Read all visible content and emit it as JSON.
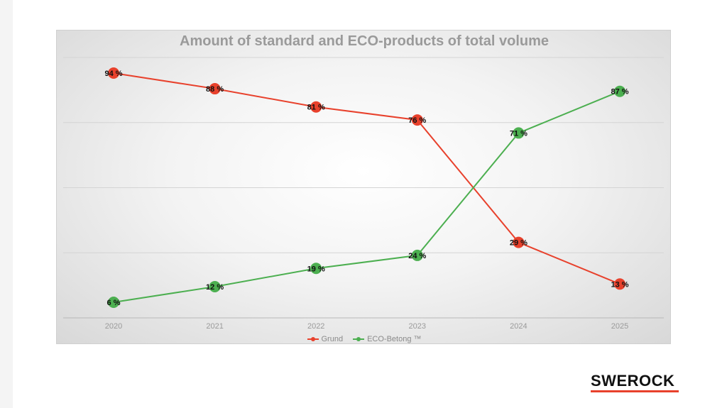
{
  "chart_data": {
    "type": "line",
    "title": "Amount of standard and ECO-products of total volume",
    "categories": [
      "2020",
      "2021",
      "2022",
      "2023",
      "2024",
      "2025"
    ],
    "ylim": [
      0,
      100
    ],
    "grid": true,
    "legend_position": "bottom",
    "series": [
      {
        "name": "Grund",
        "color": "#e8412c",
        "values": [
          94,
          88,
          81,
          76,
          29,
          13
        ],
        "labels": [
          "94 %",
          "88 %",
          "81 %",
          "76 %",
          "29 %",
          "13 %"
        ]
      },
      {
        "name": "ECO-Betong ™",
        "color": "#4caf50",
        "values": [
          6,
          12,
          19,
          24,
          71,
          87
        ],
        "labels": [
          "6 %",
          "12 %",
          "19 %",
          "24 %",
          "71 %",
          "87 %"
        ]
      }
    ]
  },
  "branding": {
    "logo_text": "SWEROCK",
    "logo_accent": "#e8412c"
  }
}
